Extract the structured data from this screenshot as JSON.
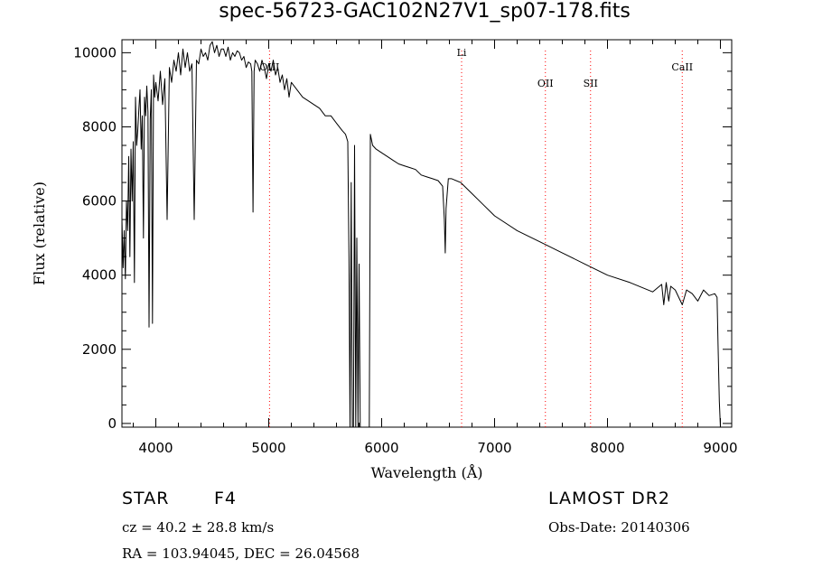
{
  "chart_data": {
    "type": "line",
    "title": "spec-56723-GAC102N27V1_sp07-178.fits",
    "xlabel": "Wavelength (Å)",
    "ylabel": "Flux (relative)",
    "xlim": [
      3700,
      9100
    ],
    "ylim": [
      -100,
      10350
    ],
    "xticks": [
      4000,
      5000,
      6000,
      7000,
      8000,
      9000
    ],
    "yticks": [
      0,
      2000,
      4000,
      6000,
      8000,
      10000
    ],
    "grid": false,
    "series": [
      {
        "x": [
          3700,
          3710,
          3720,
          3730,
          3740,
          3750,
          3760,
          3770,
          3780,
          3790,
          3800,
          3810,
          3820,
          3830,
          3840,
          3850,
          3860,
          3870,
          3880,
          3890,
          3900,
          3910,
          3920,
          3930,
          3940,
          3950,
          3960,
          3970,
          3980,
          3990,
          4000,
          4020,
          4040,
          4060,
          4080,
          4100,
          4120,
          4140,
          4160,
          4180,
          4200,
          4220,
          4240,
          4260,
          4280,
          4300,
          4320,
          4340,
          4360,
          4380,
          4400,
          4420,
          4440,
          4460,
          4480,
          4500,
          4520,
          4540,
          4560,
          4580,
          4600,
          4620,
          4640,
          4660,
          4680,
          4700,
          4720,
          4740,
          4760,
          4780,
          4800,
          4820,
          4840,
          4850,
          4861,
          4870,
          4880,
          4900,
          4920,
          4940,
          4960,
          4980,
          5000,
          5020,
          5040,
          5060,
          5080,
          5100,
          5120,
          5140,
          5160,
          5180,
          5200,
          5250,
          5300,
          5350,
          5400,
          5450,
          5500,
          5550,
          5600,
          5650,
          5680,
          5700,
          5710,
          5720,
          5730,
          5740,
          5750,
          5760,
          5770,
          5780,
          5790,
          5800,
          5810,
          5820,
          5830,
          5840,
          5850,
          5860,
          5870,
          5880,
          5890,
          5900,
          5920,
          5950,
          6000,
          6050,
          6100,
          6150,
          6200,
          6250,
          6300,
          6350,
          6400,
          6450,
          6500,
          6540,
          6555,
          6563,
          6570,
          6590,
          6620,
          6700,
          6800,
          6900,
          7000,
          7200,
          7400,
          7600,
          7800,
          8000,
          8200,
          8400,
          8480,
          8498,
          8520,
          8542,
          8560,
          8600,
          8662,
          8700,
          8750,
          8800,
          8850,
          8900,
          8950,
          8970,
          8980,
          8990,
          9000,
          9010
        ],
        "y": [
          5500,
          4200,
          5200,
          3900,
          6000,
          5200,
          7200,
          4500,
          7400,
          6000,
          7600,
          3800,
          8800,
          7500,
          7900,
          8500,
          9000,
          7400,
          8300,
          5000,
          8800,
          8300,
          9100,
          8400,
          2600,
          8200,
          9000,
          2700,
          9400,
          8800,
          9200,
          8700,
          9500,
          8600,
          9300,
          5500,
          9600,
          9200,
          9800,
          9500,
          10000,
          9400,
          10100,
          9600,
          10000,
          9500,
          9700,
          5500,
          9800,
          9700,
          10100,
          9900,
          10000,
          9800,
          10200,
          10300,
          10000,
          10200,
          9900,
          10100,
          10100,
          9900,
          10150,
          9800,
          10000,
          9900,
          10050,
          10000,
          9800,
          9900,
          9600,
          9750,
          9700,
          9500,
          5700,
          9500,
          9800,
          9700,
          9500,
          9800,
          9600,
          9300,
          9700,
          9500,
          9800,
          9400,
          9600,
          9200,
          9400,
          9000,
          9300,
          8800,
          9200,
          9000,
          8800,
          8700,
          8600,
          8500,
          8300,
          8300,
          8100,
          7900,
          7800,
          7600,
          4500,
          -100,
          6500,
          -100,
          -100,
          7500,
          -100,
          5000,
          -100,
          4300,
          -100,
          -100,
          -100,
          -100,
          -100,
          -100,
          -100,
          -100,
          -100,
          7800,
          7500,
          7400,
          7300,
          7200,
          7100,
          7000,
          6950,
          6900,
          6850,
          6700,
          6650,
          6600,
          6550,
          6400,
          5500,
          4600,
          5800,
          6600,
          6600,
          6500,
          6200,
          5900,
          5600,
          5200,
          4900,
          4600,
          4300,
          4000,
          3800,
          3550,
          3750,
          3200,
          3800,
          3300,
          3700,
          3600,
          3200,
          3600,
          3500,
          3300,
          3600,
          3450,
          3500,
          3400,
          2000,
          600,
          -100,
          -100
        ]
      }
    ],
    "lines": [
      {
        "label": "OIII",
        "x": 5007
      },
      {
        "label": "Li",
        "x": 6708
      },
      {
        "label": "OII",
        "x": 7450
      },
      {
        "label": "SII",
        "x": 7850
      },
      {
        "label": "CaII",
        "x": 8662
      }
    ]
  },
  "info": {
    "obj_class": "STAR",
    "subclass": "F4",
    "survey": "LAMOST DR2",
    "cz": "cz = 40.2 ± 28.8 km/s",
    "obs_date": "Obs-Date: 20140306",
    "coords": "RA = 103.94045, DEC =  26.04568"
  }
}
